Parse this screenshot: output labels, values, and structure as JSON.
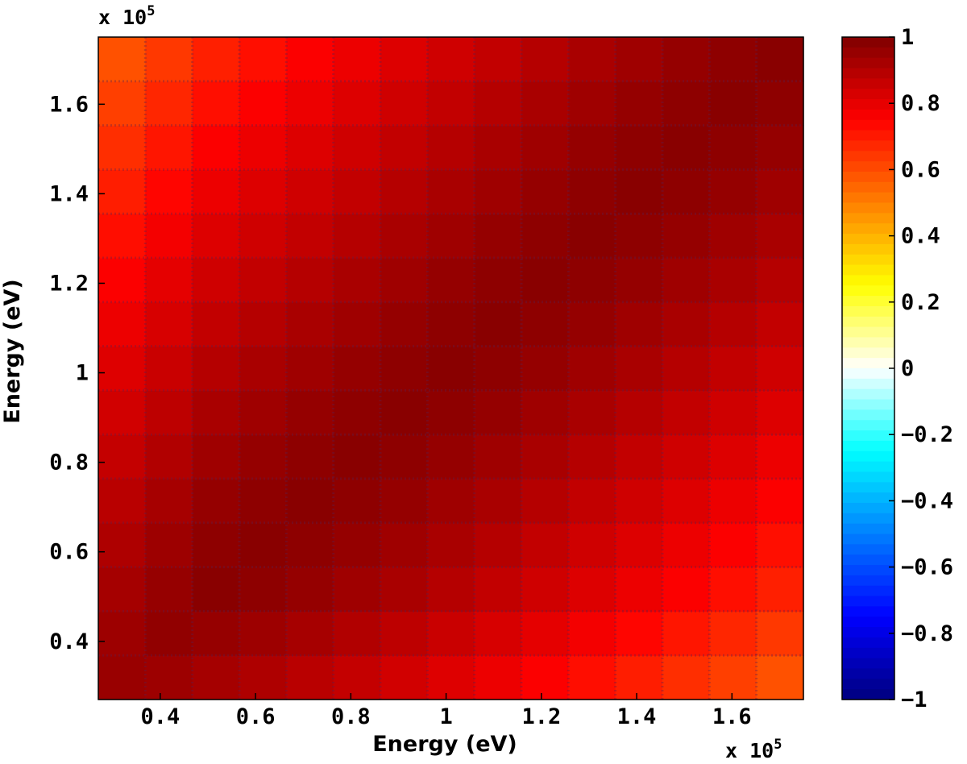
{
  "chart_data": {
    "type": "heatmap",
    "title": "",
    "xlabel": "Energy (eV)",
    "ylabel": "Energy (eV)",
    "x_multiplier": "x 10",
    "y_multiplier": "x 10",
    "multiplier_exponent": "5",
    "x_range": [
      27000,
      175000
    ],
    "y_range": [
      27000,
      175000
    ],
    "x_ticks": [
      {
        "value": 40000,
        "label": "0.4"
      },
      {
        "value": 60000,
        "label": "0.6"
      },
      {
        "value": 80000,
        "label": "0.8"
      },
      {
        "value": 100000,
        "label": "1"
      },
      {
        "value": 120000,
        "label": "1.2"
      },
      {
        "value": 140000,
        "label": "1.4"
      },
      {
        "value": 160000,
        "label": "1.6"
      }
    ],
    "y_ticks": [
      {
        "value": 40000,
        "label": "0.4"
      },
      {
        "value": 60000,
        "label": "0.6"
      },
      {
        "value": 80000,
        "label": "0.8"
      },
      {
        "value": 100000,
        "label": "1"
      },
      {
        "value": 120000,
        "label": "1.2"
      },
      {
        "value": 140000,
        "label": "1.4"
      },
      {
        "value": 160000,
        "label": "1.6"
      }
    ],
    "grid_bins": 15,
    "correlation_model": {
      "description_values": "correlation(x,y) ≈ 1 on the diagonal, decreasing to ≈0.65 at the far off-diagonal corners",
      "diagonal_value": 0.98,
      "min_corner_value": 0.62
    },
    "colorbar": {
      "range": [
        -1,
        1
      ],
      "ticks": [
        {
          "value": 1,
          "label": "1"
        },
        {
          "value": 0.8,
          "label": "0.8"
        },
        {
          "value": 0.6,
          "label": "0.6"
        },
        {
          "value": 0.4,
          "label": "0.4"
        },
        {
          "value": 0.2,
          "label": "0.2"
        },
        {
          "value": 0,
          "label": "0"
        },
        {
          "value": -0.2,
          "label": "−0.2"
        },
        {
          "value": -0.4,
          "label": "−0.4"
        },
        {
          "value": -0.6,
          "label": "−0.6"
        },
        {
          "value": -0.8,
          "label": "−0.8"
        },
        {
          "value": -1,
          "label": "−1"
        }
      ],
      "colors": [
        "#00007f",
        "#0000ff",
        "#007fff",
        "#00ffff",
        "#ffffff",
        "#ffff00",
        "#ff7f00",
        "#ff0000",
        "#7f0000"
      ]
    },
    "grid": true,
    "legend": "colorbar-right"
  }
}
